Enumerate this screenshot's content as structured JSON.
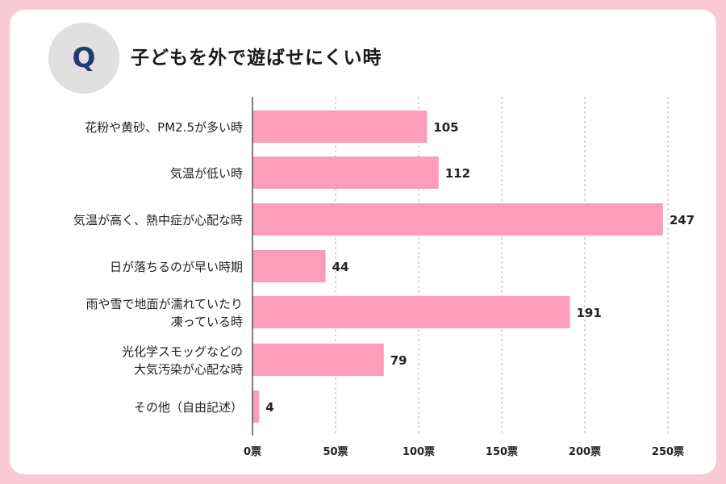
{
  "header": {
    "badge": "Q",
    "title": "子どもを外で遊ばせにくい時"
  },
  "chart_data": {
    "type": "bar",
    "orientation": "horizontal",
    "categories": [
      [
        "花粉や黄砂、PM2.5が多い時"
      ],
      [
        "気温が低い時"
      ],
      [
        "気温が高く、熱中症が心配な時"
      ],
      [
        "日が落ちるのが早い時期"
      ],
      [
        "雨や雪で地面が濡れていたり",
        "凍っている時"
      ],
      [
        "光化学スモッグなどの",
        "大気汚染が心配な時"
      ],
      [
        "その他（自由記述）"
      ]
    ],
    "values": [
      105,
      112,
      247,
      44,
      191,
      79,
      4
    ],
    "xlim": [
      0,
      250
    ],
    "ticks": [
      0,
      50,
      100,
      150,
      200,
      250
    ],
    "tick_labels": [
      "0票",
      "50票",
      "100票",
      "150票",
      "200票",
      "250票"
    ],
    "bar_color": "#fd9dbb",
    "grid": "vertical-dashed"
  }
}
